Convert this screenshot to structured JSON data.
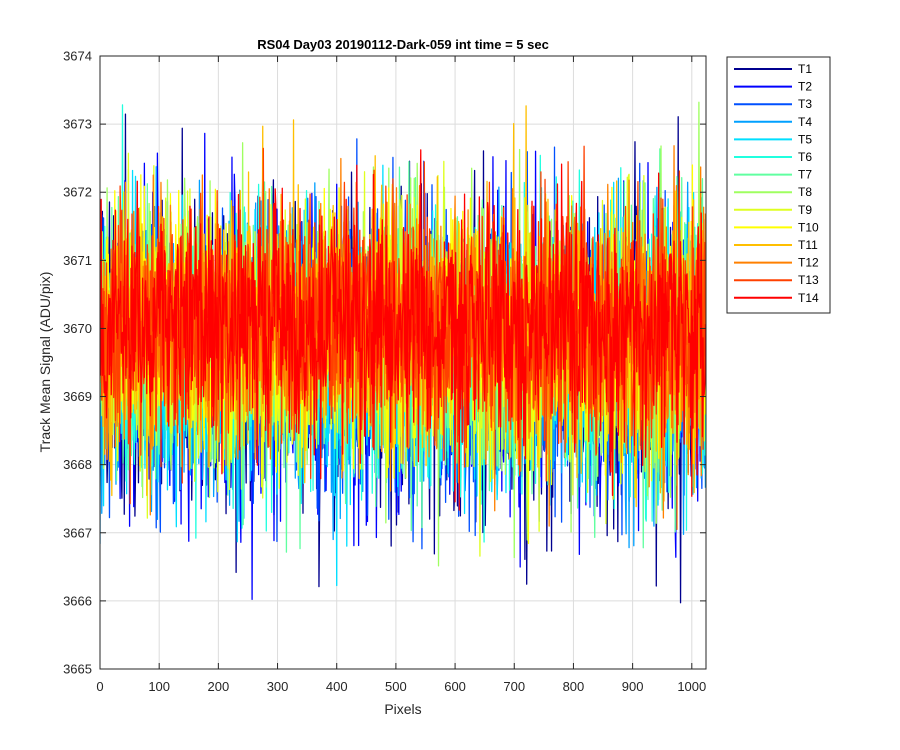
{
  "chart_data": {
    "type": "line",
    "title": "RS04 Day03 20190112-Dark-059 int time = 5 sec",
    "xlabel": "Pixels",
    "ylabel": "Track Mean Signal (ADU/pix)",
    "xlim": [
      0,
      1024
    ],
    "ylim": [
      3665,
      3674
    ],
    "xticks": [
      0,
      100,
      200,
      300,
      400,
      500,
      600,
      700,
      800,
      900,
      1000
    ],
    "yticks": [
      3665,
      3666,
      3667,
      3668,
      3669,
      3670,
      3671,
      3672,
      3673,
      3674
    ],
    "grid": true,
    "legend_position": "outside-top-right",
    "x_points": 1024,
    "series_mean": 3669.8,
    "series_peak_to_peak": [
      3665.8,
      3673.9
    ],
    "series": [
      {
        "name": "T1",
        "color": "#00008f"
      },
      {
        "name": "T2",
        "color": "#0000ff"
      },
      {
        "name": "T3",
        "color": "#0050ff"
      },
      {
        "name": "T4",
        "color": "#00a0ff"
      },
      {
        "name": "T5",
        "color": "#00dfff"
      },
      {
        "name": "T6",
        "color": "#20ffdf"
      },
      {
        "name": "T7",
        "color": "#60ffa0"
      },
      {
        "name": "T8",
        "color": "#9fff60"
      },
      {
        "name": "T9",
        "color": "#dfff20"
      },
      {
        "name": "T10",
        "color": "#ffff00"
      },
      {
        "name": "T11",
        "color": "#ffbf00"
      },
      {
        "name": "T12",
        "color": "#ff8000"
      },
      {
        "name": "T13",
        "color": "#ff4000"
      },
      {
        "name": "T14",
        "color": "#ff0000"
      }
    ]
  }
}
